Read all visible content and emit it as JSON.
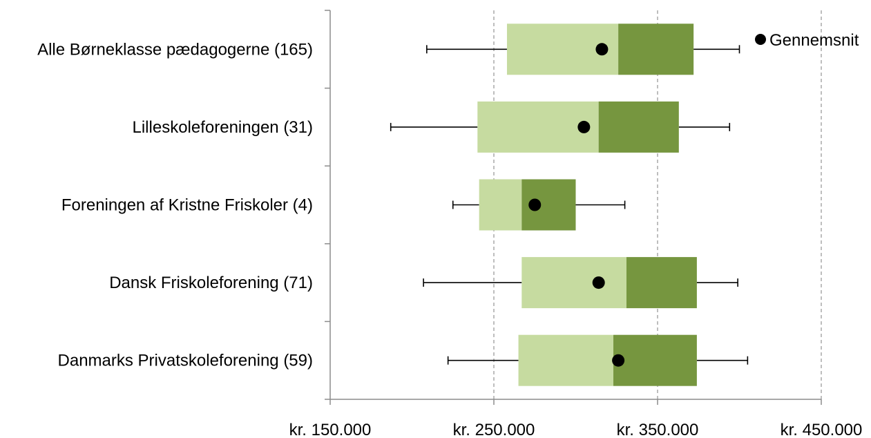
{
  "chart_data": {
    "type": "boxplot",
    "title": "",
    "xlabel": "",
    "ylabel": "",
    "xlim": [
      150000,
      450000
    ],
    "x_ticks": [
      150000,
      250000,
      350000,
      450000
    ],
    "x_tick_labels": [
      "kr. 150.000",
      "kr. 250.000",
      "kr. 350.000",
      "kr. 450.000"
    ],
    "grid": "vertical dashed",
    "legend": {
      "position": "top-right",
      "entries": [
        {
          "label": "Gennemsnit",
          "marker": "black-dot"
        }
      ]
    },
    "categories": [
      "Alle Børneklasse pædagogerne (165)",
      "Lilleskoleforeningen  (31)",
      "Foreningen af Kristne Friskoler (4)",
      "Dansk Friskoleforening (71)",
      "Danmarks Privatskoleforening (59)"
    ],
    "series": [
      {
        "min": 209000,
        "q1": 258000,
        "median": 326000,
        "q3": 372000,
        "max": 400000,
        "mean": 316000
      },
      {
        "min": 187000,
        "q1": 240000,
        "median": 314000,
        "q3": 363000,
        "max": 394000,
        "mean": 305000
      },
      {
        "min": 225000,
        "q1": 241000,
        "median": 267000,
        "q3": 300000,
        "max": 330000,
        "mean": 275000
      },
      {
        "min": 207000,
        "q1": 267000,
        "median": 331000,
        "q3": 374000,
        "max": 399000,
        "mean": 314000
      },
      {
        "min": 222000,
        "q1": 265000,
        "median": 323000,
        "q3": 374000,
        "max": 405000,
        "mean": 326000
      }
    ],
    "colors": {
      "lower_box": "#c6dba0",
      "upper_box": "#76963f",
      "whisker": "#000000",
      "mean_marker": "#000000",
      "axis": "#8c8c8c",
      "grid": "#9a9a9a"
    }
  }
}
